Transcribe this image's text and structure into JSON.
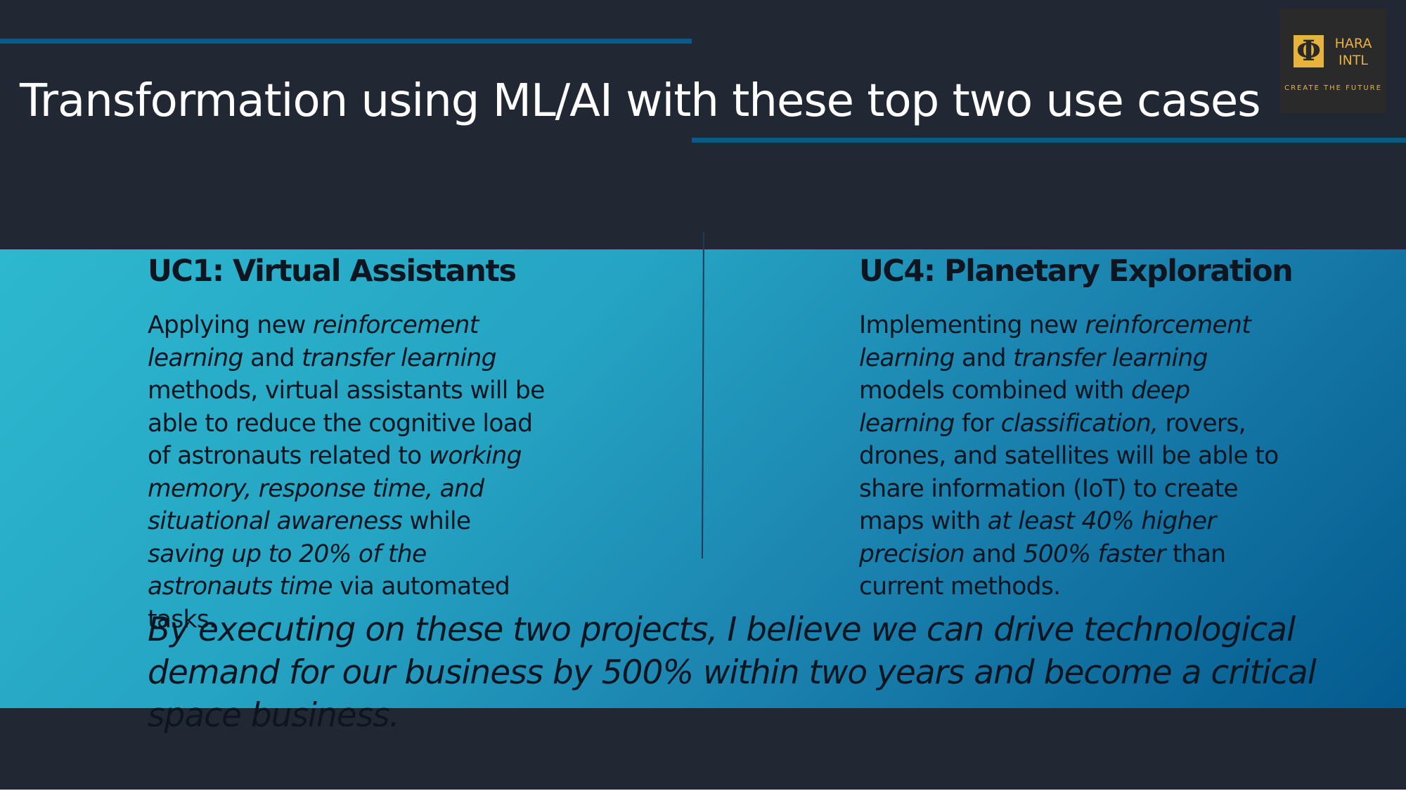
{
  "slide": {
    "title": "Transformation using ML/AI with these top two use cases"
  },
  "logo": {
    "mark": "Φ",
    "name_line1": "HARA",
    "name_line2": "INTL",
    "tagline": "CREATE THE FUTURE",
    "colors": {
      "gold": "#e8b33d",
      "background": "#2a2a2a"
    }
  },
  "uc1": {
    "heading": "UC1: Virtual Assistants",
    "lines": [
      [
        {
          "t": "Applying new "
        },
        {
          "t": "reinforcement",
          "i": true
        }
      ],
      [
        {
          "t": "learning",
          "i": true
        },
        {
          "t": " and "
        },
        {
          "t": "transfer learning",
          "i": true
        }
      ],
      [
        {
          "t": "methods, virtual assistants will be"
        }
      ],
      [
        {
          "t": "able to reduce the cognitive load"
        }
      ],
      [
        {
          "t": "of astronauts related to "
        },
        {
          "t": "working",
          "i": true
        }
      ],
      [
        {
          "t": "memory, response time, and",
          "i": true
        }
      ],
      [
        {
          "t": "situational awareness",
          "i": true
        },
        {
          "t": " while"
        }
      ],
      [
        {
          "t": "saving up to 20% of the",
          "i": true
        }
      ],
      [
        {
          "t": "astronauts time",
          "i": true
        },
        {
          "t": " via automated"
        }
      ],
      [
        {
          "t": "tasks."
        }
      ]
    ]
  },
  "uc4": {
    "heading": "UC4: Planetary Exploration",
    "lines": [
      [
        {
          "t": "Implementing new "
        },
        {
          "t": "reinforcement",
          "i": true
        }
      ],
      [
        {
          "t": "learning",
          "i": true
        },
        {
          "t": " and "
        },
        {
          "t": "transfer learning",
          "i": true
        }
      ],
      [
        {
          "t": "models combined with "
        },
        {
          "t": "deep",
          "i": true
        }
      ],
      [
        {
          "t": "learning",
          "i": true
        },
        {
          "t": " for "
        },
        {
          "t": "classification,",
          "i": true
        },
        {
          "t": " rovers,"
        }
      ],
      [
        {
          "t": "drones, and satellites will be able to"
        }
      ],
      [
        {
          "t": "share information (IoT) to create"
        }
      ],
      [
        {
          "t": "maps with "
        },
        {
          "t": "at least 40% higher",
          "i": true
        }
      ],
      [
        {
          "t": "precision",
          "i": true
        },
        {
          "t": " and "
        },
        {
          "t": "500% faster",
          "i": true
        },
        {
          "t": " than"
        }
      ],
      [
        {
          "t": "current methods."
        }
      ]
    ]
  },
  "conclusion": {
    "lines": [
      "By executing on these two projects, I believe we can drive technological",
      "demand for our business by 500% within two years and become a critical",
      "space business."
    ]
  },
  "colors": {
    "background": "#212833",
    "accent_rule": "#0a5a8e",
    "band_start": "#2db8cf",
    "band_end": "#045a8e",
    "text_dark": "#0d1620",
    "title_text": "#ffffff"
  }
}
